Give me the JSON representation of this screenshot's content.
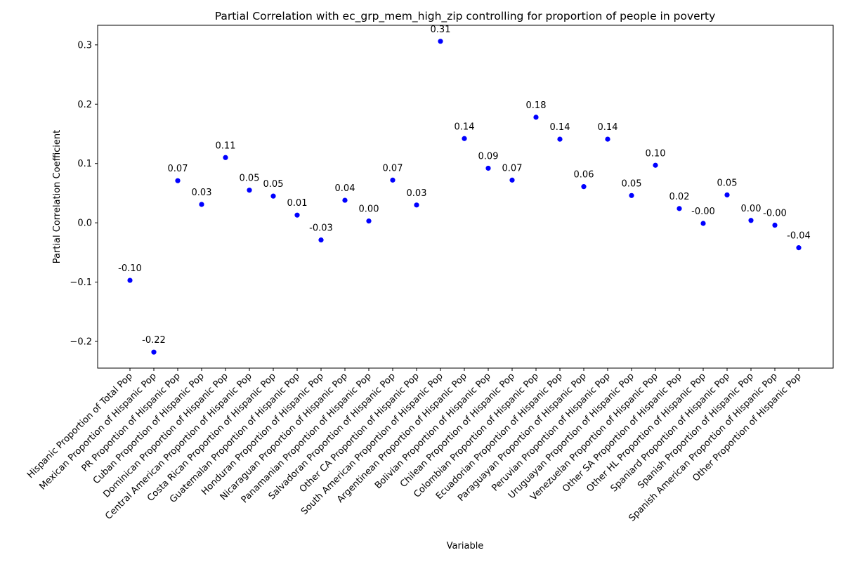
{
  "chart_data": {
    "type": "scatter",
    "title": "Partial Correlation with ec_grp_mem_high_zip controlling for proportion of people in poverty",
    "xlabel": "Variable",
    "ylabel": "Partial Correlation Coefficient",
    "ylim": [
      -0.245,
      0.333
    ],
    "yticks": [
      -0.2,
      -0.1,
      0.0,
      0.1,
      0.2,
      0.3
    ],
    "ytick_labels": [
      "−0.2",
      "−0.1",
      "0.0",
      "0.1",
      "0.2",
      "0.3"
    ],
    "grid": false,
    "point_color": "#0000ff",
    "categories": [
      "Hispanic Proportion of Total Pop",
      "Mexican Proportion of Hispanic Pop",
      "PR Proportion of Hispanic Pop",
      "Cuban Proportion of Hispanic Pop",
      "Dominican Proportion of Hispanic Pop",
      "Central American Proportion of Hispanic Pop",
      "Costa Rican Proportion of Hispanic Pop",
      "Guatemalan Proportion of Hispanic Pop",
      "Honduran Proportion of Hispanic Pop",
      "Nicaraguan Proportion of Hispanic Pop",
      "Panamanian Proportion of Hispanic Pop",
      "Salvadoran Proportion of Hispanic Pop",
      "Other CA Proportion of Hispanic Pop",
      "South American Proportion of Hispanic Pop",
      "Argentinean Proportion of Hispanic Pop",
      "Bolivian Proportion of Hispanic Pop",
      "Chilean Proportion of Hispanic Pop",
      "Colombian Proportion of Hispanic Pop",
      "Ecuadorian Proportion of Hispanic Pop",
      "Paraguayan Proportion of Hispanic Pop",
      "Peruvian Proportion of Hispanic Pop",
      "Uruguayan Proportion of Hispanic Pop",
      "Venezuelan Proportion of Hispanic Pop",
      "Other SA Proportion of Hispanic Pop",
      "Other HL Proportion of Hispanic Pop",
      "Spaniard Proportion of Hispanic Pop",
      "Spanish Proportion of Hispanic Pop",
      "Spanish American Proportion of Hispanic Pop",
      "Other Proportion of Hispanic Pop"
    ],
    "values": [
      -0.097,
      -0.218,
      0.071,
      0.031,
      0.11,
      0.055,
      0.045,
      0.013,
      -0.029,
      0.038,
      0.003,
      0.072,
      0.03,
      0.306,
      0.142,
      0.092,
      0.072,
      0.178,
      0.141,
      0.061,
      0.141,
      0.046,
      0.097,
      0.024,
      -0.001,
      0.047,
      0.004,
      -0.004,
      -0.042
    ],
    "labels": [
      "-0.10",
      "-0.22",
      "0.07",
      "0.03",
      "0.11",
      "0.05",
      "0.05",
      "0.01",
      "-0.03",
      "0.04",
      "0.00",
      "0.07",
      "0.03",
      "0.31",
      "0.14",
      "0.09",
      "0.07",
      "0.18",
      "0.14",
      "0.06",
      "0.14",
      "0.05",
      "0.10",
      "0.02",
      "-0.00",
      "0.05",
      "0.00",
      "-0.00",
      "-0.04"
    ]
  }
}
